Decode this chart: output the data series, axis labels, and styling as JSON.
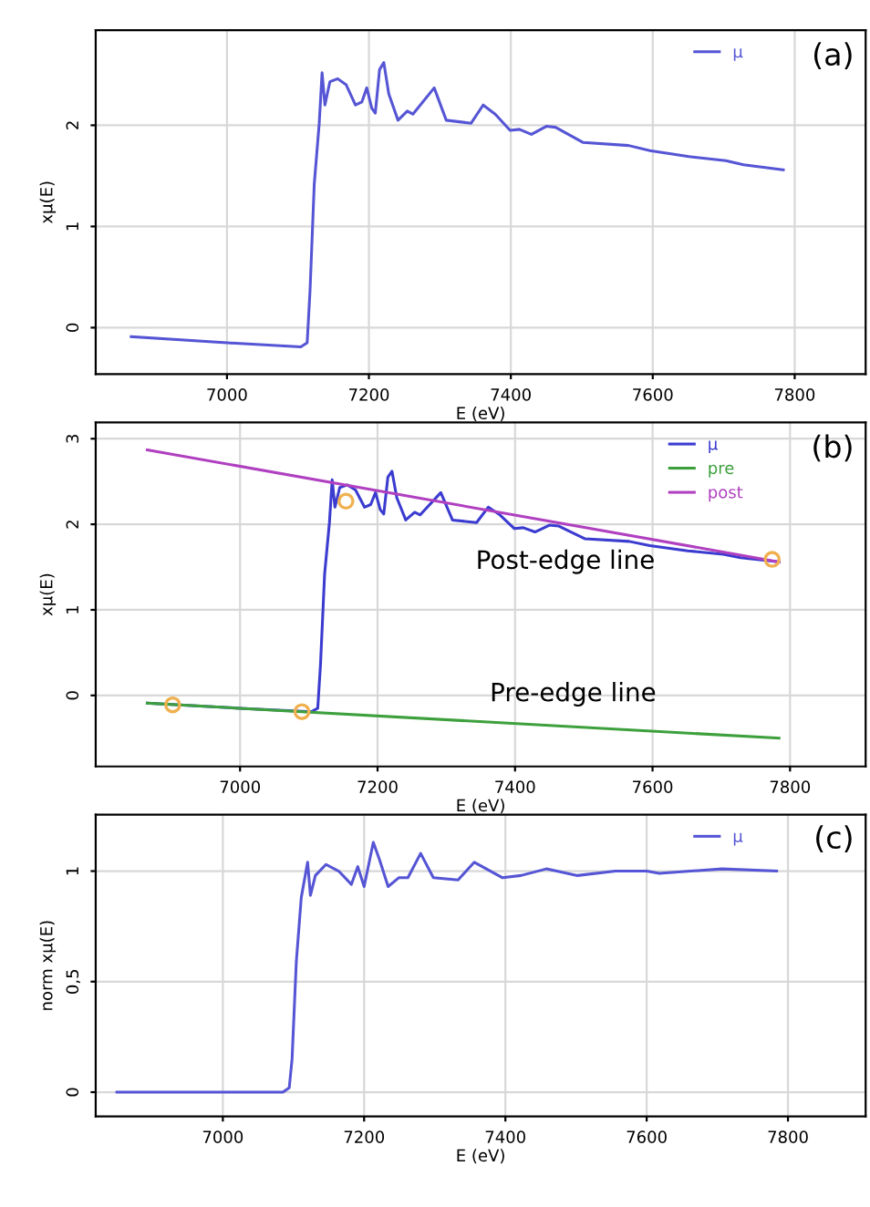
{
  "chart_data": [
    {
      "type": "line",
      "xlabel": "E (eV)",
      "ylabel": "xμ(E)",
      "annotations": [
        "(a)"
      ],
      "xlim": [
        6815,
        7900
      ],
      "ylim": [
        -0.46,
        2.94
      ],
      "xticks": [
        7000,
        7200,
        7400,
        7600,
        7800
      ],
      "yticks": [
        0,
        1,
        2
      ],
      "grid": true,
      "legend": "top right",
      "series": [
        {
          "name": "μ",
          "color": "#5555d5",
          "x": [
            6865,
            7000,
            7104,
            7113,
            7117,
            7123,
            7130,
            7134,
            7138,
            7145,
            7156,
            7168,
            7181,
            7190,
            7197,
            7204,
            7209,
            7215,
            7221,
            7228,
            7241,
            7254,
            7262,
            7292,
            7309,
            7344,
            7361,
            7378,
            7399,
            7412,
            7429,
            7450,
            7463,
            7502,
            7566,
            7596,
            7651,
            7703,
            7728,
            7784
          ],
          "values": [
            -0.09,
            -0.15,
            -0.19,
            -0.15,
            0.36,
            1.42,
            2.02,
            2.52,
            2.2,
            2.43,
            2.46,
            2.4,
            2.2,
            2.23,
            2.37,
            2.17,
            2.12,
            2.55,
            2.62,
            2.31,
            2.05,
            2.14,
            2.11,
            2.37,
            2.05,
            2.02,
            2.2,
            2.11,
            1.95,
            1.96,
            1.91,
            1.99,
            1.98,
            1.83,
            1.8,
            1.75,
            1.69,
            1.65,
            1.61,
            1.56
          ]
        }
      ]
    },
    {
      "type": "line",
      "xlabel": "E (eV)",
      "ylabel": "xμ(E)",
      "annotations": [
        "(b)",
        "Post-edge line",
        "Pre-edge line"
      ],
      "xlim": [
        6790,
        7910
      ],
      "ylim": [
        -0.83,
        3.19
      ],
      "xticks": [
        7000,
        7200,
        7400,
        7600,
        7800
      ],
      "yticks": [
        0,
        1,
        2,
        3
      ],
      "grid": true,
      "legend": "top right",
      "series": [
        {
          "name": "μ",
          "color": "#3b3bd0",
          "x": [
            6865,
            7000,
            7104,
            7113,
            7117,
            7123,
            7130,
            7134,
            7138,
            7145,
            7156,
            7168,
            7181,
            7190,
            7197,
            7204,
            7209,
            7215,
            7221,
            7228,
            7241,
            7254,
            7262,
            7292,
            7309,
            7344,
            7361,
            7378,
            7399,
            7412,
            7429,
            7450,
            7463,
            7502,
            7566,
            7596,
            7651,
            7703,
            7728,
            7784
          ],
          "values": [
            -0.09,
            -0.15,
            -0.19,
            -0.15,
            0.36,
            1.42,
            2.02,
            2.52,
            2.2,
            2.43,
            2.46,
            2.4,
            2.2,
            2.23,
            2.37,
            2.17,
            2.12,
            2.55,
            2.62,
            2.31,
            2.05,
            2.14,
            2.11,
            2.37,
            2.05,
            2.02,
            2.2,
            2.11,
            1.95,
            1.96,
            1.91,
            1.99,
            1.98,
            1.83,
            1.8,
            1.75,
            1.69,
            1.65,
            1.61,
            1.56
          ]
        },
        {
          "name": "pre",
          "color": "#3da03d",
          "x": [
            6865,
            7784
          ],
          "values": [
            -0.09,
            -0.5
          ]
        },
        {
          "name": "post",
          "color": "#b040c0",
          "x": [
            6865,
            7784
          ],
          "values": [
            2.87,
            1.56
          ]
        },
        {
          "type": "scatter",
          "marker": "circle",
          "color": "#f0b050",
          "x": [
            6902,
            7090,
            7154,
            7774
          ],
          "values": [
            -0.11,
            -0.19,
            2.27,
            1.59
          ]
        }
      ]
    },
    {
      "type": "line",
      "xlabel": "E (eV)",
      "ylabel": "norm xμ(E)",
      "annotations": [
        "(c)"
      ],
      "xlim": [
        6820,
        7910
      ],
      "ylim": [
        -0.11,
        1.255
      ],
      "xticks": [
        7000,
        7200,
        7400,
        7600,
        7800
      ],
      "yticks": [
        0,
        {
          "value": 0.5,
          "label": "0,5"
        },
        1
      ],
      "grid": true,
      "legend": "top right",
      "series": [
        {
          "name": "μ",
          "color": "#5555d5",
          "x": [
            6850,
            7085,
            7094,
            7098,
            7104,
            7111,
            7120,
            7124,
            7131,
            7146,
            7164,
            7182,
            7191,
            7200,
            7213,
            7222,
            7234,
            7249,
            7262,
            7280,
            7298,
            7333,
            7356,
            7396,
            7422,
            7458,
            7502,
            7556,
            7600,
            7618,
            7662,
            7707,
            7784
          ],
          "values": [
            0,
            0,
            0.02,
            0.15,
            0.59,
            0.88,
            1.04,
            0.89,
            0.98,
            1.03,
            1.0,
            0.94,
            1.02,
            0.93,
            1.13,
            1.05,
            0.93,
            0.97,
            0.97,
            1.08,
            0.97,
            0.96,
            1.04,
            0.97,
            0.98,
            1.01,
            0.98,
            1.0,
            1.0,
            0.99,
            1.0,
            1.01,
            1.0
          ]
        }
      ]
    }
  ]
}
